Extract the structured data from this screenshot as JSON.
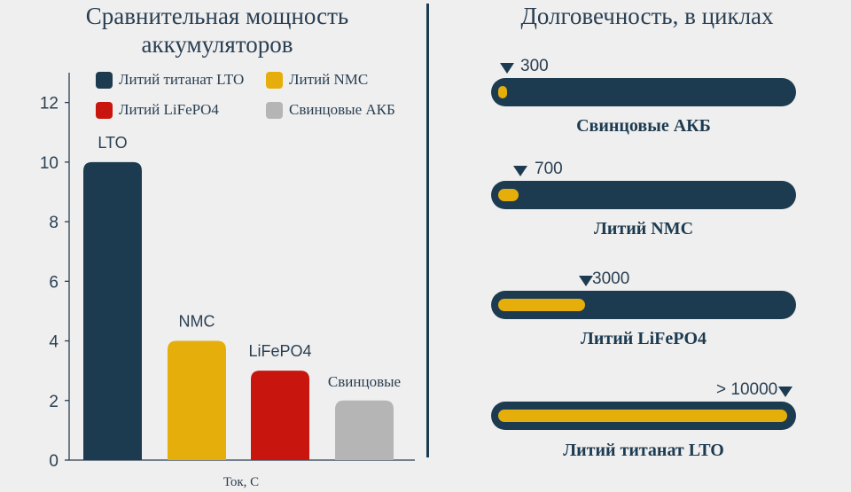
{
  "left": {
    "title_line1": "Сравнительная мощность",
    "title_line2": "аккумуляторов"
  },
  "right": {
    "title": "Долговечность, в циклах"
  },
  "legend": [
    {
      "label": "Литий титанат LTO",
      "color": "#1d3b50"
    },
    {
      "label": "Литий NMC",
      "color": "#e6ae0a"
    },
    {
      "label": "Литий LiFePO4",
      "color": "#c8150e"
    },
    {
      "label": "Свинцовые АКБ",
      "color": "#b5b5b5"
    }
  ],
  "chart_data": [
    {
      "type": "bar",
      "title": "Сравнительная мощность аккумуляторов",
      "categories": [
        "LTO",
        "NMC",
        "LiFePO4",
        "Свинцовые"
      ],
      "values": [
        10,
        4,
        3,
        2
      ],
      "colors": [
        "#1d3b50",
        "#e6ae0a",
        "#c8150e",
        "#b5b5b5"
      ],
      "xlabel": "Ток, С",
      "ylabel": "",
      "ylim": [
        0,
        13
      ],
      "yticks": [
        "0",
        "2",
        "4",
        "6",
        "8",
        "10",
        "12"
      ]
    },
    {
      "type": "bar",
      "title": "Долговечность, в циклах",
      "categories": [
        "Свинцовые АКБ",
        "Литий NMC",
        "Литий LiFePO4",
        "Литий титанат LTO"
      ],
      "values": [
        300,
        700,
        3000,
        10000
      ],
      "value_labels": [
        "300",
        "700",
        "3000",
        "> 10000"
      ]
    }
  ]
}
